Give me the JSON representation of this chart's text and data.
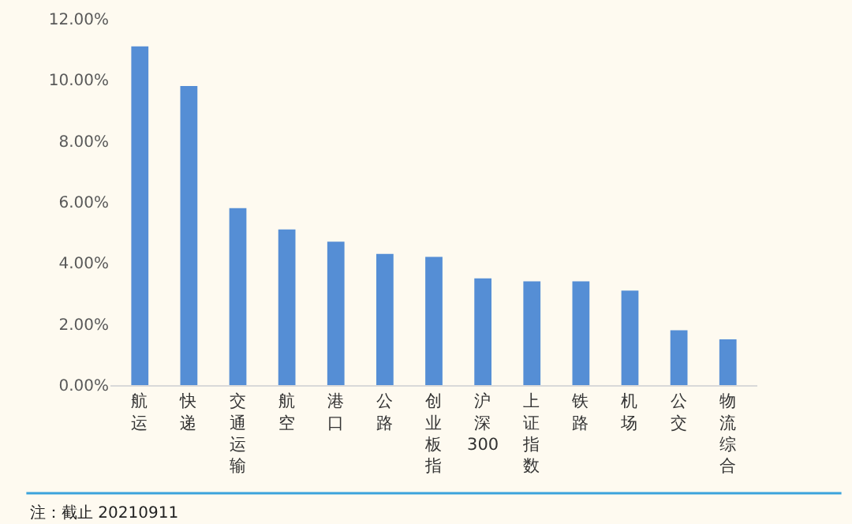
{
  "chart_data": {
    "type": "bar",
    "categories": [
      "航运",
      "快递",
      "交通运输",
      "航空",
      "港口",
      "公路",
      "创业板指",
      "沪深300",
      "上证指数",
      "铁路",
      "机场",
      "公交",
      "物流综合"
    ],
    "values": [
      11.1,
      9.8,
      5.8,
      5.1,
      4.7,
      4.3,
      4.2,
      3.5,
      3.4,
      3.4,
      3.1,
      1.8,
      1.5
    ],
    "color": "#558ed5",
    "ylim": [
      0,
      12
    ],
    "yticks": [
      {
        "value": 0,
        "label": "0.00%"
      },
      {
        "value": 2,
        "label": "2.00%"
      },
      {
        "value": 4,
        "label": "4.00%"
      },
      {
        "value": 6,
        "label": "6.00%"
      },
      {
        "value": 8,
        "label": "8.00%"
      },
      {
        "value": 10,
        "label": "10.00%"
      },
      {
        "value": 12,
        "label": "12.00%"
      }
    ],
    "grid": false,
    "annotations": [
      "注：截止 20210911"
    ]
  }
}
